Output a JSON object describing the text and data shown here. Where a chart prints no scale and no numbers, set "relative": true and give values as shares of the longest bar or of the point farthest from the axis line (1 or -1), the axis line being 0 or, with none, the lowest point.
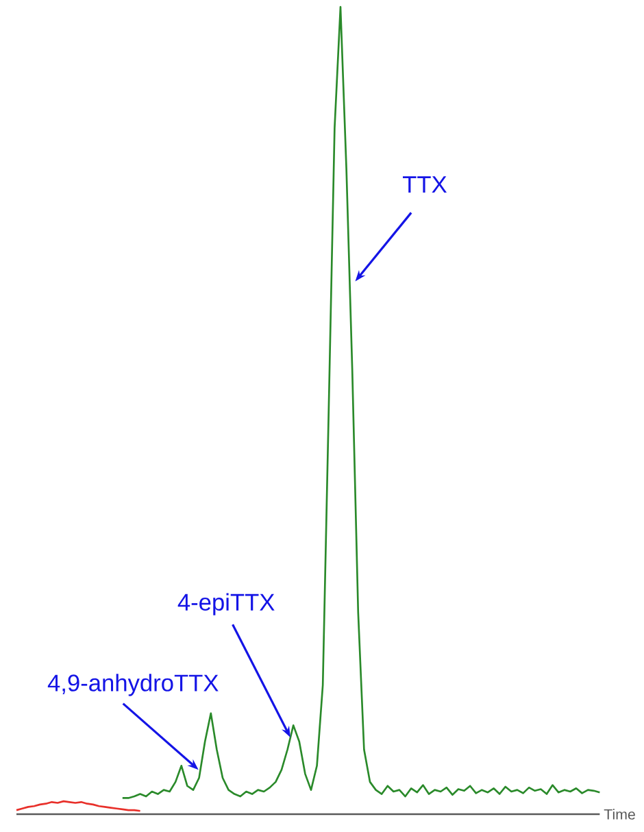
{
  "chart_data": {
    "type": "line",
    "relative": true,
    "xlabel": "Time",
    "categories": [
      null,
      null,
      null,
      null,
      null,
      null,
      null,
      null,
      null,
      null,
      null,
      null,
      null,
      null,
      null,
      null,
      null,
      null,
      null,
      null,
      null,
      null,
      null,
      null,
      null,
      null,
      null,
      null,
      null,
      null,
      null,
      null,
      null,
      null,
      null,
      null,
      null,
      null,
      null,
      null,
      null,
      null,
      null,
      null,
      null,
      null,
      null,
      null,
      null,
      null,
      null,
      null,
      null,
      null,
      null,
      null,
      null,
      null,
      null,
      null,
      null,
      null,
      null,
      null,
      null,
      null,
      null,
      null,
      null,
      null,
      null,
      null,
      null,
      null,
      null,
      null,
      null,
      null,
      null,
      null,
      null,
      null,
      null,
      null,
      null,
      null,
      null,
      null,
      null,
      null,
      null,
      null,
      null,
      null,
      null,
      null,
      null,
      null,
      null,
      null
    ],
    "series": [
      {
        "color": "#e8302a",
        "values": [
          0.005,
          0.007,
          0.009,
          0.01,
          0.012,
          0.013,
          0.015,
          0.014,
          0.016,
          0.015,
          0.014,
          0.015,
          0.013,
          0.012,
          0.01,
          0.009,
          0.008,
          0.007,
          0.006,
          0.005,
          0.005,
          0.004,
          null,
          null,
          null,
          null,
          null,
          null,
          null,
          null,
          null,
          null,
          null,
          null,
          null,
          null,
          null,
          null,
          null,
          null,
          null,
          null,
          null,
          null,
          null,
          null,
          null,
          null,
          null,
          null,
          null,
          null,
          null,
          null,
          null,
          null,
          null,
          null,
          null,
          null,
          null,
          null,
          null,
          null,
          null,
          null,
          null,
          null,
          null,
          null,
          null,
          null,
          null,
          null,
          null,
          null,
          null,
          null,
          null,
          null,
          null,
          null,
          null,
          null,
          null,
          null,
          null,
          null,
          null,
          null,
          null,
          null,
          null,
          null,
          null,
          null,
          null,
          null,
          null,
          null
        ]
      },
      {
        "color": "#2a8a2a",
        "values": [
          null,
          null,
          null,
          null,
          null,
          null,
          null,
          null,
          null,
          null,
          null,
          null,
          null,
          null,
          null,
          null,
          null,
          null,
          0.02,
          0.02,
          0.022,
          0.025,
          0.022,
          0.028,
          0.025,
          0.03,
          0.028,
          0.04,
          0.06,
          0.035,
          0.03,
          0.045,
          0.09,
          0.125,
          0.08,
          0.045,
          0.03,
          0.025,
          0.022,
          0.028,
          0.025,
          0.03,
          0.028,
          0.033,
          0.04,
          0.055,
          0.08,
          0.11,
          0.09,
          0.05,
          0.03,
          0.06,
          0.16,
          0.5,
          0.85,
          1.0,
          0.8,
          0.55,
          0.25,
          0.08,
          0.04,
          0.03,
          0.025,
          0.035,
          0.028,
          0.03,
          0.022,
          0.032,
          0.027,
          0.036,
          0.025,
          0.03,
          0.028,
          0.033,
          0.024,
          0.031,
          0.029,
          0.035,
          0.026,
          0.03,
          0.027,
          0.032,
          0.025,
          0.034,
          0.028,
          0.03,
          0.026,
          0.033,
          0.029,
          0.031,
          0.025,
          0.036,
          0.027,
          0.03,
          0.028,
          0.032,
          0.026,
          0.03,
          0.029,
          0.027
        ]
      }
    ],
    "annotations": [
      "TTX",
      "4-epiTTX",
      "4,9-anhydroTTX"
    ]
  }
}
